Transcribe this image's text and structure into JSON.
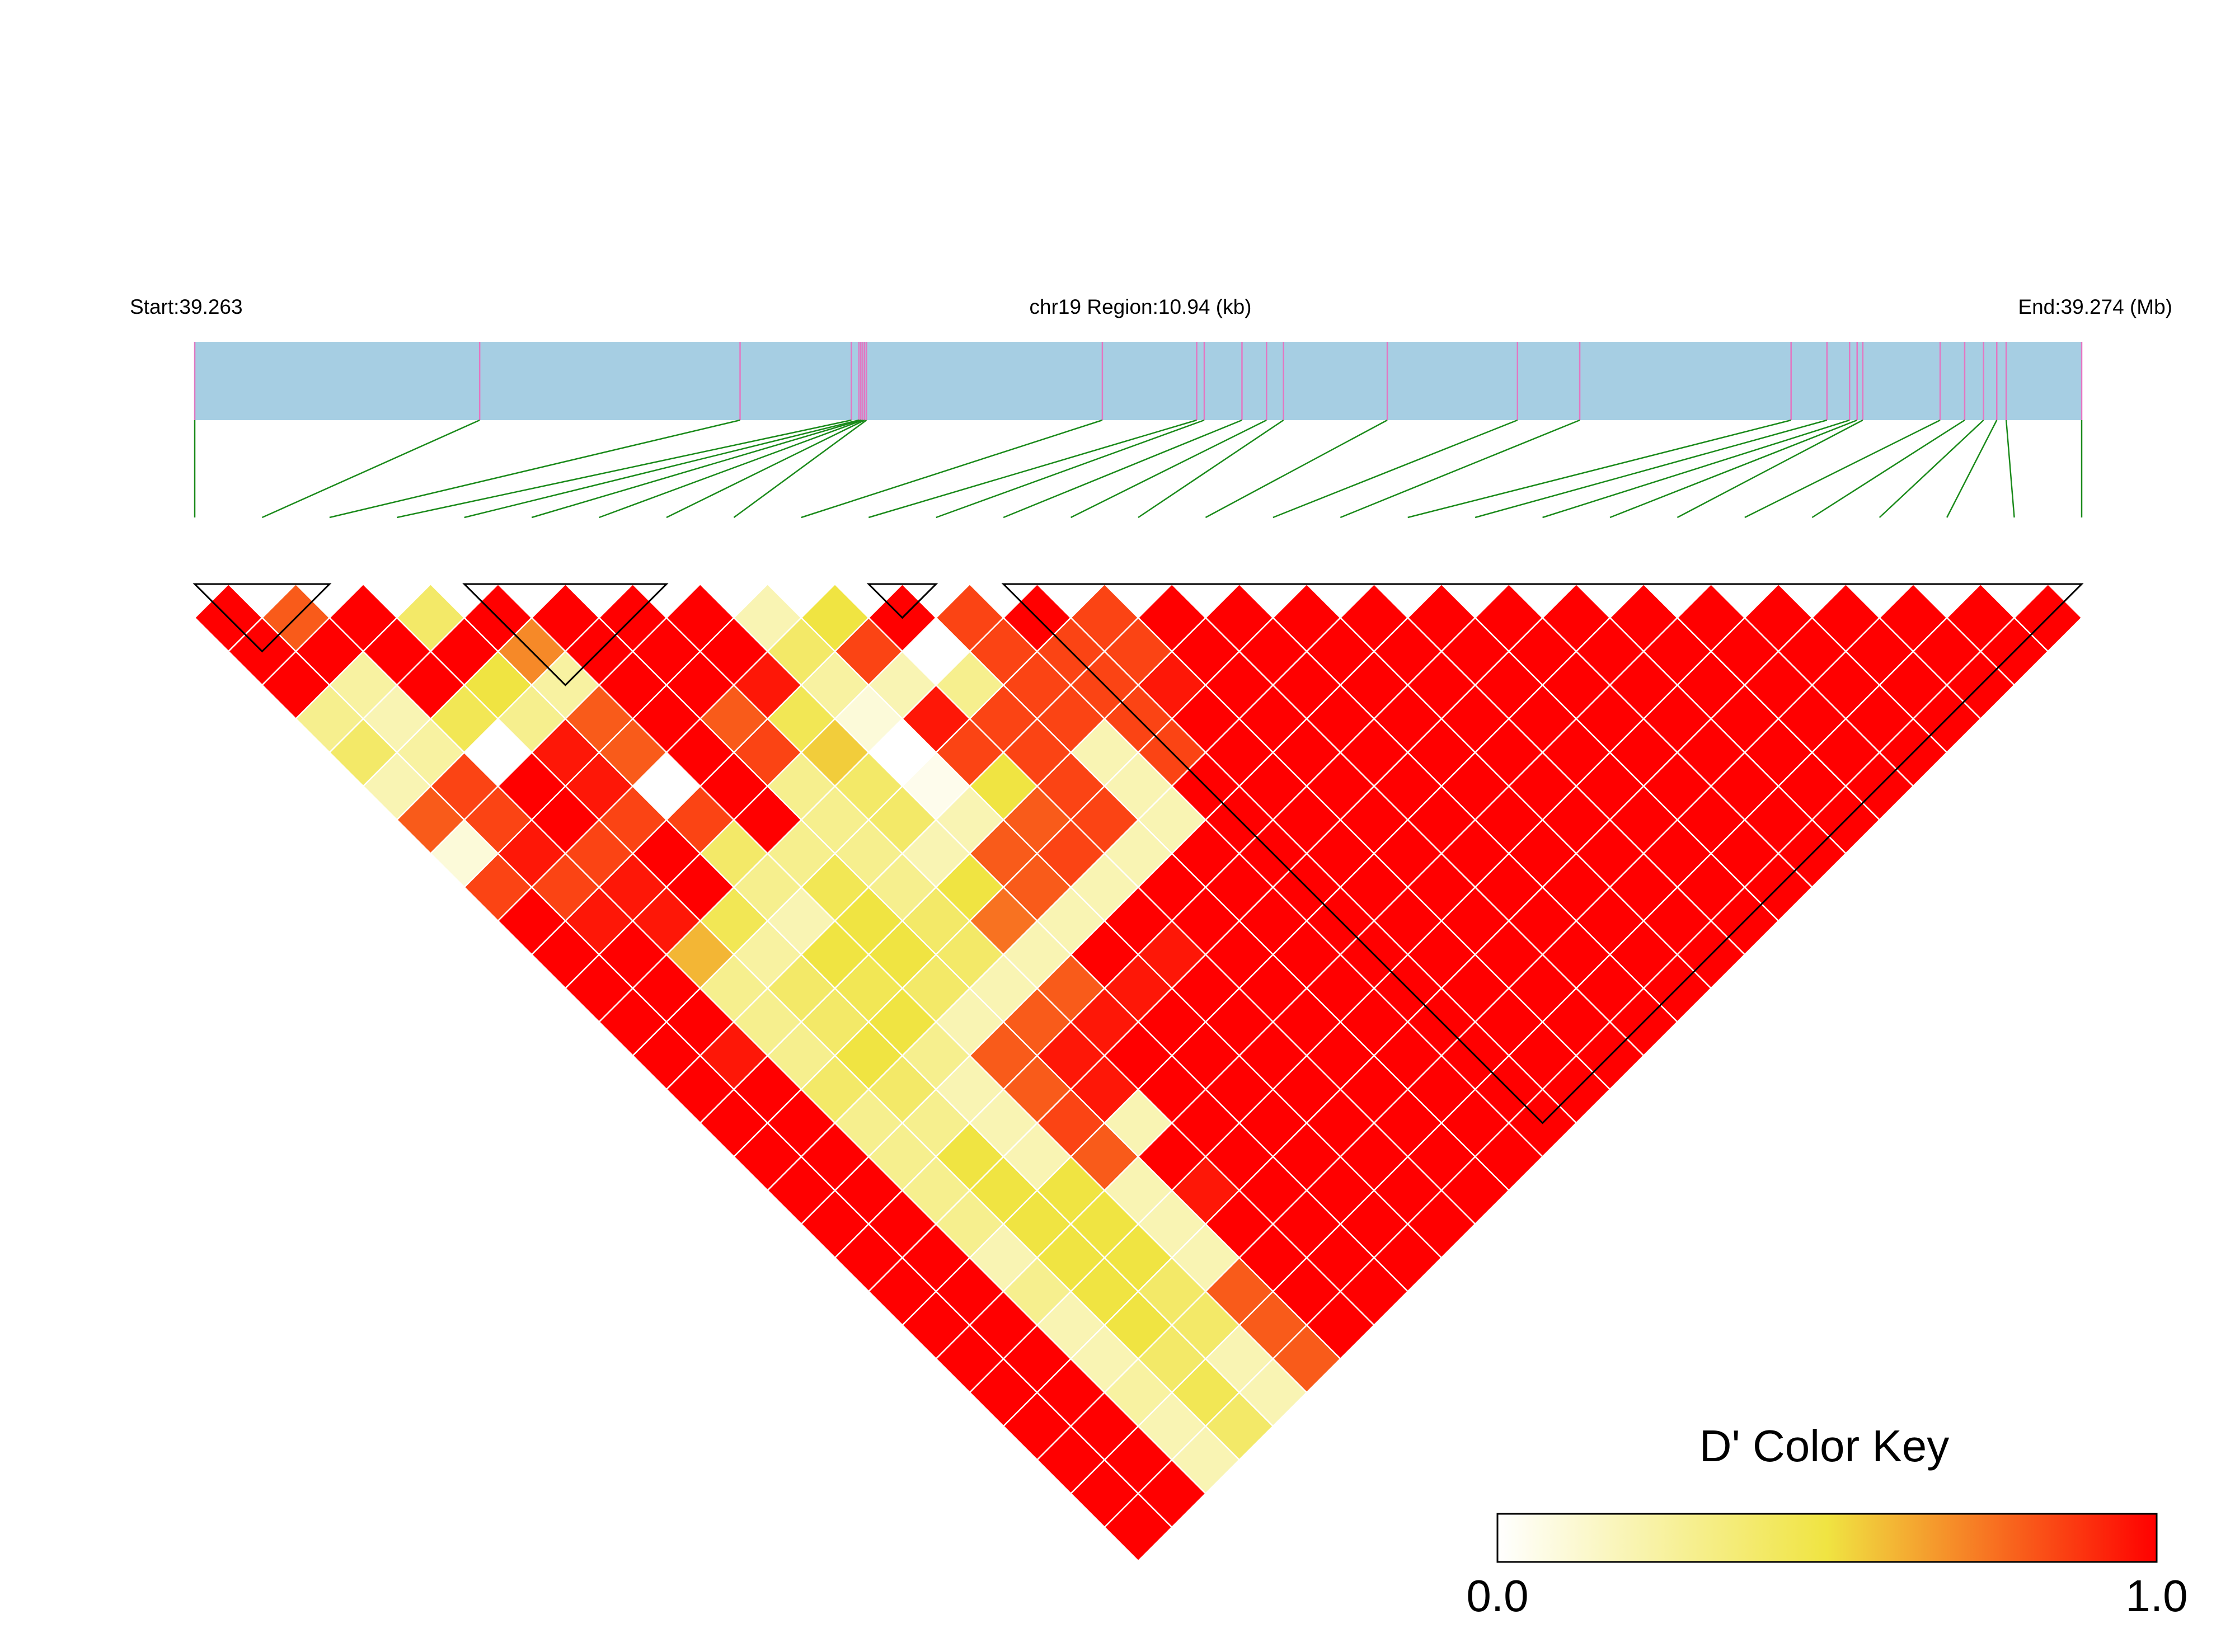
{
  "chart_data": {
    "type": "heatmap",
    "subtype": "linkage-disequilibrium-triangle",
    "header": {
      "start_label": "Start:39.263",
      "region_label": "chr19 Region:10.94 (kb)",
      "end_label": "End:39.274 (Mb)"
    },
    "region": {
      "chrom": "chr19",
      "start_mb": 39.263,
      "end_mb": 39.274,
      "length_kb": 10.94
    },
    "snp_count": 29,
    "snp_positions_frac": [
      0,
      0.151,
      0.289,
      0.348,
      0.352,
      0.353,
      0.354,
      0.355,
      0.356,
      0.481,
      0.531,
      0.535,
      0.555,
      0.568,
      0.577,
      0.632,
      0.701,
      0.734,
      0.846,
      0.865,
      0.877,
      0.881,
      0.884,
      0.925,
      0.938,
      0.948,
      0.955,
      0.96,
      1.0
    ],
    "marker_colors": {
      "track_fill": "#a6cee3",
      "marker_line": "#e377c2",
      "connector": "#1a8a1a",
      "cell_border": "#ffffff",
      "block_outline": "#000000"
    },
    "ld_matrix_note": "D' by diagonal distance d (row index = first SNP)",
    "ld_diagonals": [
      [
        1.0,
        0.8,
        1.0,
        0.4,
        1.0,
        1.0,
        1.0,
        1.0,
        0.2,
        0.5,
        1.0,
        0.85,
        1.0,
        0.85,
        1.0,
        1.0,
        1.0,
        1.0,
        1.0,
        1.0,
        1.0,
        1.0,
        1.0,
        1.0,
        1.0,
        1.0,
        1.0,
        1.0
      ],
      [
        1.0,
        1.0,
        1.0,
        1.0,
        0.7,
        1.0,
        1.0,
        1.0,
        0.4,
        0.85,
        0.0,
        0.85,
        0.85,
        0.85,
        1.0,
        1.0,
        1.0,
        1.0,
        1.0,
        1.0,
        1.0,
        1.0,
        1.0,
        1.0,
        1.0,
        1.0,
        1.0
      ],
      [
        1.0,
        0.25,
        1.0,
        0.5,
        0.25,
        1.0,
        1.0,
        0.95,
        0.25,
        0.2,
        0.3,
        0.85,
        0.85,
        0.95,
        1.0,
        1.0,
        1.0,
        1.0,
        1.0,
        1.0,
        1.0,
        1.0,
        1.0,
        1.0,
        1.0,
        1.0
      ],
      [
        0.3,
        0.2,
        0.45,
        0.3,
        0.8,
        1.0,
        0.8,
        0.45,
        0.1,
        0.95,
        0.85,
        0.85,
        0.85,
        1.0,
        1.0,
        1.0,
        1.0,
        1.0,
        1.0,
        1.0,
        1.0,
        1.0,
        1.0,
        1.0,
        1.0
      ],
      [
        0.4,
        0.25,
        0.0,
        0.95,
        0.8,
        1.0,
        0.85,
        0.55,
        0.0,
        0.85,
        0.85,
        0.2,
        0.85,
        1.0,
        1.0,
        1.0,
        1.0,
        1.0,
        1.0,
        1.0,
        1.0,
        1.0,
        1.0,
        1.0
      ],
      [
        0.2,
        0.85,
        1.0,
        0.95,
        0.0,
        1.0,
        0.3,
        0.4,
        0.05,
        0.5,
        0.85,
        0.2,
        1.0,
        1.0,
        1.0,
        1.0,
        1.0,
        1.0,
        1.0,
        1.0,
        1.0,
        1.0,
        1.0
      ],
      [
        0.8,
        0.85,
        1.0,
        0.85,
        0.85,
        1.0,
        0.3,
        0.4,
        0.2,
        0.8,
        0.85,
        0.2,
        1.0,
        1.0,
        1.0,
        1.0,
        1.0,
        1.0,
        1.0,
        1.0,
        1.0,
        1.0
      ],
      [
        0.1,
        0.95,
        0.85,
        1.0,
        0.4,
        0.3,
        0.3,
        0.2,
        0.8,
        0.85,
        0.2,
        1.0,
        1.0,
        1.0,
        1.0,
        1.0,
        1.0,
        1.0,
        1.0,
        1.0,
        1.0
      ],
      [
        0.85,
        0.85,
        0.95,
        1.0,
        0.3,
        0.45,
        0.3,
        0.5,
        0.8,
        0.2,
        1.0,
        1.0,
        1.0,
        1.0,
        1.0,
        1.0,
        1.0,
        1.0,
        1.0,
        1.0
      ],
      [
        1.0,
        0.95,
        0.95,
        0.45,
        0.2,
        0.5,
        0.4,
        0.75,
        0.2,
        1.0,
        1.0,
        1.0,
        1.0,
        1.0,
        1.0,
        1.0,
        1.0,
        1.0,
        1.0
      ],
      [
        1.0,
        1.0,
        0.6,
        0.25,
        0.5,
        0.5,
        0.4,
        0.2,
        1.0,
        0.95,
        1.0,
        1.0,
        1.0,
        1.0,
        1.0,
        1.0,
        1.0,
        1.0
      ],
      [
        1.0,
        1.0,
        0.3,
        0.4,
        0.45,
        0.4,
        0.2,
        0.8,
        0.95,
        1.0,
        1.0,
        1.0,
        1.0,
        1.0,
        1.0,
        1.0,
        1.0
      ],
      [
        1.0,
        1.0,
        0.3,
        0.4,
        0.5,
        0.2,
        0.8,
        0.95,
        1.0,
        1.0,
        1.0,
        1.0,
        1.0,
        1.0,
        1.0,
        1.0
      ],
      [
        1.0,
        0.95,
        0.3,
        0.5,
        0.3,
        0.8,
        0.95,
        1.0,
        1.0,
        1.0,
        1.0,
        1.0,
        1.0,
        1.0,
        1.0
      ],
      [
        1.0,
        1.0,
        0.4,
        0.4,
        0.2,
        0.8,
        0.95,
        1.0,
        1.0,
        1.0,
        1.0,
        1.0,
        1.0,
        1.0
      ],
      [
        1.0,
        1.0,
        0.3,
        0.3,
        0.2,
        0.85,
        0.2,
        1.0,
        1.0,
        1.0,
        1.0,
        1.0,
        1.0
      ],
      [
        1.0,
        1.0,
        0.3,
        0.5,
        0.2,
        0.8,
        1.0,
        1.0,
        1.0,
        1.0,
        1.0,
        1.0
      ],
      [
        1.0,
        1.0,
        0.3,
        0.5,
        0.5,
        0.2,
        0.95,
        1.0,
        1.0,
        1.0,
        1.0
      ],
      [
        1.0,
        1.0,
        0.3,
        0.5,
        0.5,
        0.2,
        1.0,
        1.0,
        1.0,
        1.0
      ],
      [
        1.0,
        1.0,
        0.2,
        0.5,
        0.5,
        0.2,
        1.0,
        1.0,
        1.0
      ],
      [
        1.0,
        1.0,
        0.3,
        0.5,
        0.4,
        0.8,
        1.0,
        1.0
      ],
      [
        1.0,
        1.0,
        0.2,
        0.5,
        0.4,
        0.8,
        1.0
      ],
      [
        1.0,
        1.0,
        0.2,
        0.4,
        0.2,
        0.8
      ],
      [
        1.0,
        1.0,
        0.25,
        0.45,
        0.2
      ],
      [
        1.0,
        1.0,
        0.2,
        0.4
      ],
      [
        1.0,
        1.0,
        0.2
      ],
      [
        1.0,
        1.0
      ],
      [
        1.0
      ]
    ],
    "ld_blocks": [
      [
        0,
        2
      ],
      [
        4,
        7
      ],
      [
        10,
        11
      ],
      [
        12,
        28
      ]
    ],
    "color_key": {
      "title": "D' Color Key",
      "min_label": "0.0",
      "max_label": "1.0",
      "min": 0.0,
      "max": 1.0,
      "stops": [
        {
          "value": 0.0,
          "color": "#ffffff"
        },
        {
          "value": 0.5,
          "color": "#f0e442"
        },
        {
          "value": 1.0,
          "color": "#ff0000"
        }
      ]
    }
  }
}
